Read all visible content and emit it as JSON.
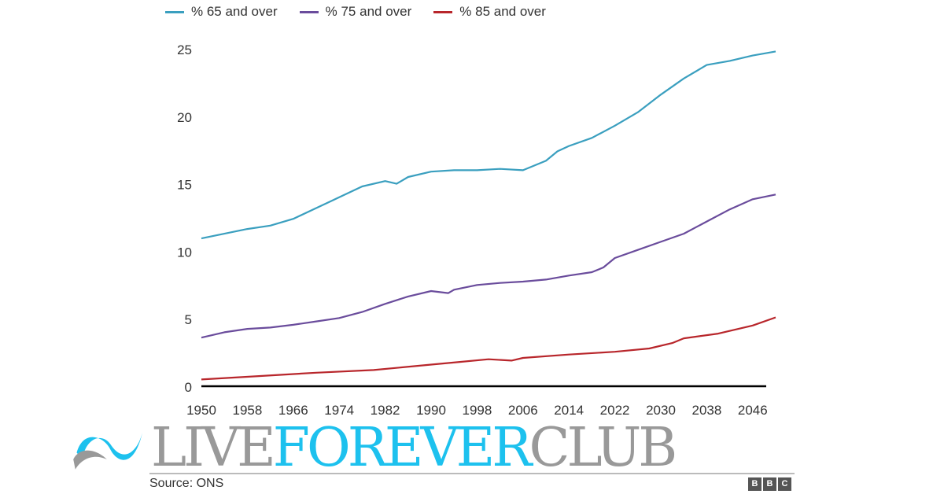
{
  "chart_data": {
    "type": "line",
    "title": "",
    "xlabel": "",
    "ylabel": "",
    "xlim": [
      1950,
      2050
    ],
    "ylim": [
      0,
      25
    ],
    "x_ticks": [
      1950,
      1958,
      1966,
      1974,
      1982,
      1990,
      1998,
      2006,
      2014,
      2022,
      2030,
      2038,
      2046
    ],
    "y_ticks": [
      0,
      5,
      10,
      15,
      20,
      25
    ],
    "grid": false,
    "legend_position": "top",
    "series": [
      {
        "name": "% 65 and over",
        "color": "#3a9fbf",
        "points": [
          [
            1950,
            10.95
          ],
          [
            1954,
            11.3
          ],
          [
            1958,
            11.65
          ],
          [
            1962,
            11.9
          ],
          [
            1966,
            12.4
          ],
          [
            1970,
            13.2
          ],
          [
            1974,
            14.0
          ],
          [
            1978,
            14.8
          ],
          [
            1982,
            15.2
          ],
          [
            1984,
            15.0
          ],
          [
            1986,
            15.5
          ],
          [
            1990,
            15.9
          ],
          [
            1994,
            16.0
          ],
          [
            1998,
            16.0
          ],
          [
            2002,
            16.1
          ],
          [
            2006,
            16.0
          ],
          [
            2010,
            16.7
          ],
          [
            2012,
            17.4
          ],
          [
            2014,
            17.8
          ],
          [
            2018,
            18.4
          ],
          [
            2022,
            19.3
          ],
          [
            2026,
            20.3
          ],
          [
            2030,
            21.6
          ],
          [
            2034,
            22.8
          ],
          [
            2038,
            23.8
          ],
          [
            2042,
            24.1
          ],
          [
            2046,
            24.5
          ],
          [
            2050,
            24.8
          ]
        ]
      },
      {
        "name": "% 75 and over",
        "color": "#6a4c9c",
        "points": [
          [
            1950,
            3.6
          ],
          [
            1954,
            4.0
          ],
          [
            1958,
            4.25
          ],
          [
            1962,
            4.35
          ],
          [
            1966,
            4.55
          ],
          [
            1970,
            4.8
          ],
          [
            1974,
            5.05
          ],
          [
            1978,
            5.5
          ],
          [
            1982,
            6.1
          ],
          [
            1986,
            6.65
          ],
          [
            1990,
            7.05
          ],
          [
            1993,
            6.9
          ],
          [
            1994,
            7.15
          ],
          [
            1998,
            7.5
          ],
          [
            2002,
            7.65
          ],
          [
            2006,
            7.75
          ],
          [
            2010,
            7.9
          ],
          [
            2014,
            8.2
          ],
          [
            2018,
            8.45
          ],
          [
            2020,
            8.8
          ],
          [
            2022,
            9.5
          ],
          [
            2026,
            10.1
          ],
          [
            2030,
            10.7
          ],
          [
            2034,
            11.3
          ],
          [
            2038,
            12.2
          ],
          [
            2042,
            13.1
          ],
          [
            2046,
            13.85
          ],
          [
            2050,
            14.2
          ]
        ]
      },
      {
        "name": "% 85 and over",
        "color": "#b8262b",
        "points": [
          [
            1950,
            0.5
          ],
          [
            1960,
            0.75
          ],
          [
            1970,
            1.0
          ],
          [
            1980,
            1.2
          ],
          [
            1990,
            1.6
          ],
          [
            1995,
            1.8
          ],
          [
            2000,
            2.0
          ],
          [
            2004,
            1.9
          ],
          [
            2006,
            2.1
          ],
          [
            2014,
            2.35
          ],
          [
            2022,
            2.55
          ],
          [
            2028,
            2.8
          ],
          [
            2032,
            3.2
          ],
          [
            2034,
            3.55
          ],
          [
            2040,
            3.9
          ],
          [
            2046,
            4.5
          ],
          [
            2050,
            5.1
          ]
        ]
      }
    ]
  },
  "source": "Source: ONS",
  "bbc_letters": [
    "B",
    "B",
    "C"
  ],
  "watermark": {
    "part1": "LIVE ",
    "part2": "FOREVER",
    "part3": "CLUB"
  }
}
